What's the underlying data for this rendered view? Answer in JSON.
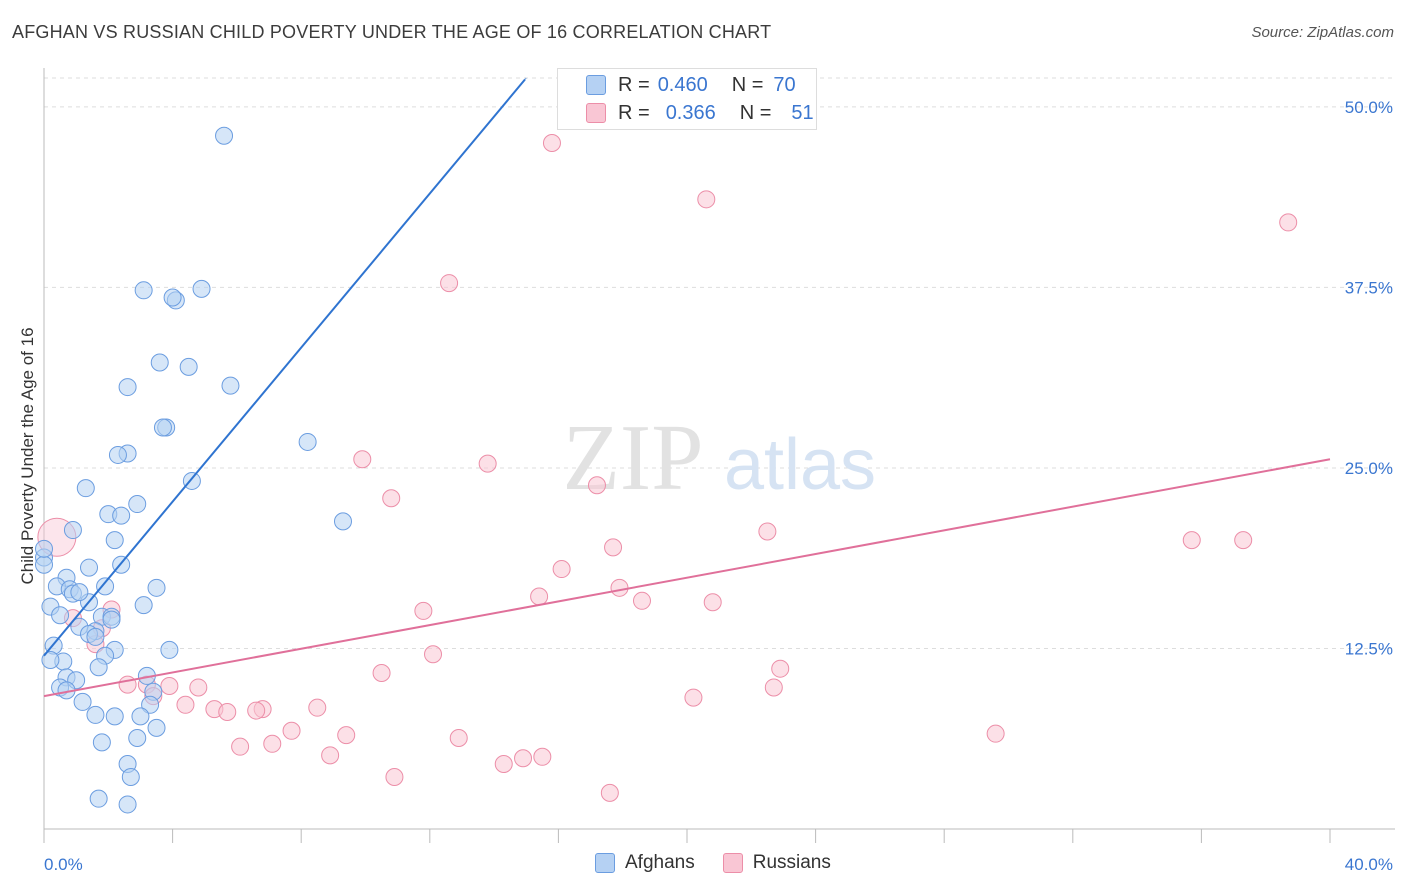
{
  "title": "AFGHAN VS RUSSIAN CHILD POVERTY UNDER THE AGE OF 16 CORRELATION CHART",
  "source": "Source: ZipAtlas.com",
  "watermark": {
    "zip": "ZIP",
    "atlas": "atlas"
  },
  "legend_top": {
    "rows": [
      {
        "r_label": "R =",
        "r_value": "0.460",
        "n_label": "N =",
        "n_value": "70"
      },
      {
        "r_label": "R =",
        "r_value": "0.366",
        "n_label": "N =",
        "n_value": "51"
      }
    ]
  },
  "legend_bottom": {
    "afghans": "Afghans",
    "russians": "Russians"
  },
  "colors": {
    "afghans_fill": "#b5d1f3",
    "afghans_stroke": "#6b9de0",
    "afghans_line": "#2f74d0",
    "russians_fill": "#f9c6d4",
    "russians_stroke": "#ec8ea8",
    "russians_line": "#e0709a",
    "tick_label": "#3a76d0",
    "grid": "#dddddd"
  },
  "chart_data": {
    "type": "scatter",
    "title": "AFGHAN VS RUSSIAN CHILD POVERTY UNDER THE AGE OF 16 CORRELATION CHART",
    "xlabel": "",
    "ylabel": "Child Poverty Under the Age of 16",
    "xlim": [
      0,
      40
    ],
    "ylim": [
      0,
      52
    ],
    "x_tick_labels": [
      "0.0%",
      "40.0%"
    ],
    "y_ticks": [
      12.5,
      25.0,
      37.5,
      50.0
    ],
    "y_tick_labels": [
      "12.5%",
      "25.0%",
      "37.5%",
      "50.0%"
    ],
    "grid": true,
    "legend_position": "top-center",
    "series": [
      {
        "name": "Afghans",
        "r": 0.46,
        "n": 70,
        "trend": {
          "x0": 0,
          "y0": 12.0,
          "x1": 15.0,
          "y1": 52.0,
          "solid_until_x": 15.2
        },
        "points": [
          [
            5.6,
            48.0
          ],
          [
            3.1,
            37.3
          ],
          [
            4.1,
            36.6
          ],
          [
            4.9,
            37.4
          ],
          [
            4.0,
            36.8
          ],
          [
            3.6,
            32.3
          ],
          [
            4.5,
            32.0
          ],
          [
            2.6,
            30.6
          ],
          [
            5.8,
            30.7
          ],
          [
            3.8,
            27.8
          ],
          [
            3.7,
            27.8
          ],
          [
            8.2,
            26.8
          ],
          [
            2.6,
            26.0
          ],
          [
            2.3,
            25.9
          ],
          [
            4.6,
            24.1
          ],
          [
            1.3,
            23.6
          ],
          [
            2.9,
            22.5
          ],
          [
            2.0,
            21.8
          ],
          [
            2.4,
            21.7
          ],
          [
            9.3,
            21.3
          ],
          [
            0.9,
            20.7
          ],
          [
            2.2,
            20.0
          ],
          [
            0.0,
            18.8
          ],
          [
            0.0,
            18.3
          ],
          [
            1.4,
            18.1
          ],
          [
            2.4,
            18.3
          ],
          [
            0.7,
            17.4
          ],
          [
            0.4,
            16.8
          ],
          [
            0.8,
            16.6
          ],
          [
            1.9,
            16.8
          ],
          [
            3.5,
            16.7
          ],
          [
            0.9,
            16.3
          ],
          [
            1.4,
            15.7
          ],
          [
            0.2,
            15.4
          ],
          [
            3.1,
            15.5
          ],
          [
            0.5,
            14.8
          ],
          [
            1.8,
            14.7
          ],
          [
            2.1,
            14.7
          ],
          [
            2.1,
            14.5
          ],
          [
            1.1,
            14.0
          ],
          [
            1.6,
            13.7
          ],
          [
            1.4,
            13.5
          ],
          [
            0.3,
            12.7
          ],
          [
            1.6,
            13.3
          ],
          [
            2.2,
            12.4
          ],
          [
            3.9,
            12.4
          ],
          [
            1.9,
            12.0
          ],
          [
            0.6,
            11.6
          ],
          [
            0.2,
            11.7
          ],
          [
            1.7,
            11.2
          ],
          [
            3.2,
            10.6
          ],
          [
            0.7,
            10.5
          ],
          [
            1.0,
            10.3
          ],
          [
            0.5,
            9.8
          ],
          [
            0.7,
            9.6
          ],
          [
            3.4,
            9.5
          ],
          [
            1.2,
            8.8
          ],
          [
            3.3,
            8.6
          ],
          [
            1.6,
            7.9
          ],
          [
            2.2,
            7.8
          ],
          [
            3.0,
            7.8
          ],
          [
            3.5,
            7.0
          ],
          [
            1.8,
            6.0
          ],
          [
            2.9,
            6.3
          ],
          [
            2.6,
            4.5
          ],
          [
            2.7,
            3.6
          ],
          [
            1.7,
            2.1
          ],
          [
            2.6,
            1.7
          ],
          [
            0.0,
            19.4
          ],
          [
            1.1,
            16.4
          ]
        ]
      },
      {
        "name": "Russians",
        "r": 0.366,
        "n": 51,
        "trend": {
          "x0": 0,
          "y0": 9.2,
          "x1": 40.0,
          "y1": 25.6
        },
        "points": [
          [
            15.8,
            47.5
          ],
          [
            20.6,
            43.6
          ],
          [
            38.7,
            42.0
          ],
          [
            12.6,
            37.8
          ],
          [
            9.9,
            25.6
          ],
          [
            13.8,
            25.3
          ],
          [
            10.8,
            22.9
          ],
          [
            17.2,
            23.8
          ],
          [
            22.5,
            20.6
          ],
          [
            35.7,
            20.0
          ],
          [
            17.7,
            19.5
          ],
          [
            37.3,
            20.0
          ],
          [
            16.1,
            18.0
          ],
          [
            17.9,
            16.7
          ],
          [
            15.4,
            16.1
          ],
          [
            18.6,
            15.8
          ],
          [
            20.8,
            15.7
          ],
          [
            11.8,
            15.1
          ],
          [
            2.1,
            15.2
          ],
          [
            0.9,
            14.6
          ],
          [
            1.8,
            13.9
          ],
          [
            1.6,
            12.8
          ],
          [
            12.1,
            12.1
          ],
          [
            22.9,
            11.1
          ],
          [
            10.5,
            10.8
          ],
          [
            2.6,
            10.0
          ],
          [
            3.2,
            10.0
          ],
          [
            3.9,
            9.9
          ],
          [
            4.8,
            9.8
          ],
          [
            22.7,
            9.8
          ],
          [
            3.4,
            9.2
          ],
          [
            20.2,
            9.1
          ],
          [
            4.4,
            8.6
          ],
          [
            5.3,
            8.3
          ],
          [
            6.8,
            8.3
          ],
          [
            5.7,
            8.1
          ],
          [
            6.6,
            8.2
          ],
          [
            8.5,
            8.4
          ],
          [
            7.7,
            6.8
          ],
          [
            9.4,
            6.5
          ],
          [
            29.6,
            6.6
          ],
          [
            12.9,
            6.3
          ],
          [
            7.1,
            5.9
          ],
          [
            6.1,
            5.7
          ],
          [
            8.9,
            5.1
          ],
          [
            14.9,
            4.9
          ],
          [
            15.5,
            5.0
          ],
          [
            14.3,
            4.5
          ],
          [
            10.9,
            3.6
          ],
          [
            17.6,
            2.5
          ],
          [
            0.4,
            20.2
          ]
        ]
      }
    ]
  }
}
